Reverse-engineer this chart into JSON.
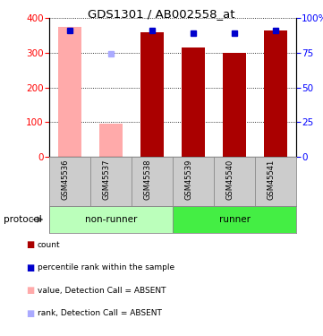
{
  "title": "GDS1301 / AB002558_at",
  "samples": [
    "GSM45536",
    "GSM45537",
    "GSM45538",
    "GSM45539",
    "GSM45540",
    "GSM45541"
  ],
  "bar_values": [
    375,
    95,
    360,
    315,
    300,
    365
  ],
  "bar_absent": [
    true,
    true,
    false,
    false,
    false,
    false
  ],
  "rank_values": [
    91,
    74,
    91,
    89,
    89,
    91
  ],
  "rank_absent": [
    false,
    true,
    false,
    false,
    false,
    false
  ],
  "ylim_left": [
    0,
    400
  ],
  "ylim_right": [
    0,
    100
  ],
  "yticks_left": [
    0,
    100,
    200,
    300,
    400
  ],
  "yticks_right": [
    0,
    25,
    50,
    75,
    100
  ],
  "yticklabels_right": [
    "0",
    "25",
    "50",
    "75",
    "100%"
  ],
  "color_bar_present": "#aa0000",
  "color_bar_absent": "#ffaaaa",
  "color_rank_present": "#0000cc",
  "color_rank_absent": "#aaaaff",
  "nonrunner_color": "#bbffbb",
  "runner_color": "#44ee44",
  "label_bg": "#cccccc",
  "bg_color": "#ffffff"
}
